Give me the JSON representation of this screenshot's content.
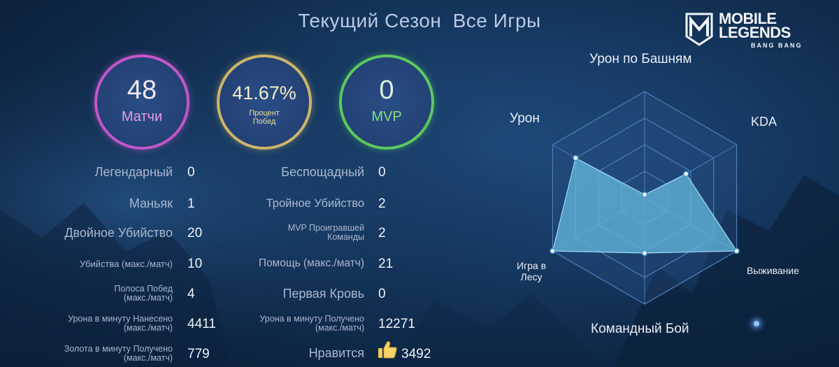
{
  "header": {
    "tab_current_season": "Текущий Сезон",
    "tab_all_games": "Все Игры"
  },
  "logo": {
    "line1": "MOBILE",
    "line2": "LEGENDS",
    "line3": "BANG BANG"
  },
  "summary": {
    "matches": {
      "value": "48",
      "label": "Матчи",
      "color": "#c257c9"
    },
    "win_rate": {
      "value": "41.67%",
      "label_line1": "Процент",
      "label_line2": "Побед",
      "color": "#cbb56a"
    },
    "mvp": {
      "value": "0",
      "label": "MVP",
      "color": "#5cc860"
    }
  },
  "stats_left": [
    {
      "label": "Легендарный",
      "value": "0"
    },
    {
      "label": "Маньяк",
      "value": "1"
    },
    {
      "label": "Двойное Убийство",
      "value": "20"
    },
    {
      "label": "Убийства (макс./матч)",
      "value": "10"
    },
    {
      "label_line1": "Полоса Побед",
      "label_line2": "(макс./матч)",
      "value": "4"
    },
    {
      "label_line1": "Урона в минуту Нанесено",
      "label_line2": "(макс./матч)",
      "value": "4411"
    },
    {
      "label_line1": "Золота в минуту Получено",
      "label_line2": "(макс./матч)",
      "value": "779"
    }
  ],
  "stats_right": [
    {
      "label": "Беспощадный",
      "value": "0"
    },
    {
      "label": "Тройное Убийство",
      "value": "2"
    },
    {
      "label_line1": "MVP Проигравшей",
      "label_line2": "Команды",
      "value": "2"
    },
    {
      "label": "Помощь (макс./матч)",
      "value": "21"
    },
    {
      "label": "Первая Кровь",
      "value": "0"
    },
    {
      "label_line1": "Урона в минуту Получено",
      "label_line2": "(макс./матч)",
      "value": "12271"
    },
    {
      "label": "Нравится",
      "value": "3492"
    }
  ],
  "radar": {
    "axes": [
      {
        "label": "Урон по Башням",
        "score": 0.03
      },
      {
        "label": "KDA",
        "score": 0.45
      },
      {
        "label": "Выживание",
        "score": 1.0
      },
      {
        "label": "Командный Бой",
        "score": 0.52
      },
      {
        "label_line1": "Игра в",
        "label_line2": "Лесу",
        "score": 1.0
      },
      {
        "label": "Урон",
        "score": 0.75
      }
    ],
    "fill_color": "#62b5d9",
    "grid_color": "#4f7fb8"
  },
  "icons": {
    "like": "thumbs-up-icon"
  }
}
